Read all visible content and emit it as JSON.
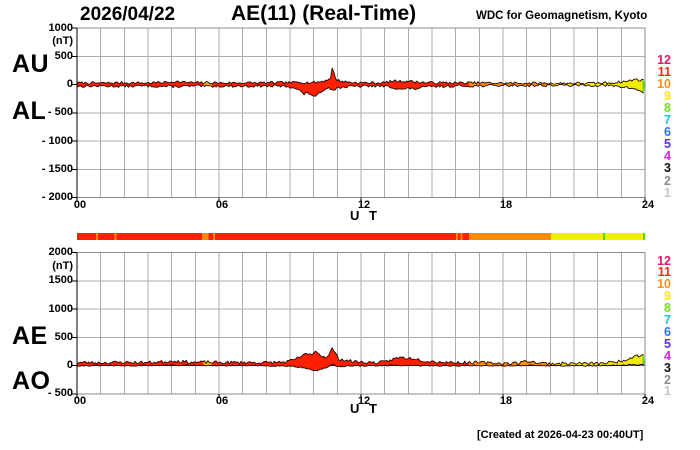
{
  "header": {
    "date": "2026/04/22",
    "title": "AE(11) (Real-Time)",
    "source": "WDC for Geomagnetism, Kyoto"
  },
  "footer": {
    "created_note": "[Created at 2026-04-23 00:40UT]"
  },
  "xaxis": {
    "label": "U T",
    "ticks": [
      {
        "label": "00",
        "hour": 0
      },
      {
        "label": "06",
        "hour": 6
      },
      {
        "label": "12",
        "hour": 12
      },
      {
        "label": "18",
        "hour": 18
      },
      {
        "label": "24",
        "hour": 24
      }
    ]
  },
  "panels": [
    {
      "name": "AU-AL",
      "side_labels": [
        "AU",
        "AL"
      ],
      "unit": "(nT)",
      "yticks": [
        {
          "label": "1000",
          "value": 1000
        },
        {
          "label": "(nT)",
          "value": null
        },
        {
          "label": "500",
          "value": 500
        },
        {
          "label": "0",
          "value": 0
        },
        {
          "label": "- 500",
          "value": -500
        },
        {
          "label": "- 1000",
          "value": -1000
        },
        {
          "label": "- 1500",
          "value": -1500
        },
        {
          "label": "- 2000",
          "value": -2000
        }
      ]
    },
    {
      "name": "AE-AO",
      "side_labels": [
        "AE",
        "AO"
      ],
      "unit": "(nT)",
      "yticks": [
        {
          "label": "2000",
          "value": 2000
        },
        {
          "label": "(nT)",
          "value": null
        },
        {
          "label": "1500",
          "value": 1500
        },
        {
          "label": "1000",
          "value": 1000
        },
        {
          "label": "500",
          "value": 500
        },
        {
          "label": "0",
          "value": 0
        },
        {
          "label": "- 500",
          "value": -500
        }
      ]
    }
  ],
  "legend": {
    "levels": [
      {
        "label": "12",
        "color": "#E8186C"
      },
      {
        "label": "11",
        "color": "#FF2814"
      },
      {
        "label": "10",
        "color": "#FF8C1A"
      },
      {
        "label": "9",
        "color": "#FFE414"
      },
      {
        "label": "8",
        "color": "#78E018"
      },
      {
        "label": "7",
        "color": "#18C8D8"
      },
      {
        "label": "6",
        "color": "#2874F0"
      },
      {
        "label": "5",
        "color": "#5430E0"
      },
      {
        "label": "4",
        "color": "#E020E0"
      },
      {
        "label": "3",
        "color": "#101010"
      },
      {
        "label": "2",
        "color": "#8C8C8C"
      },
      {
        "label": "1",
        "color": "#C6C6C6"
      }
    ]
  },
  "trace_colors": {
    "red": "#FF2000",
    "orange": "#FF8C00",
    "yellow": "#F0EC00",
    "green": "#5CD800",
    "outline": "#240400"
  },
  "chart_data": [
    {
      "type": "area",
      "title": "AU and AL indices, 2026/04/22 (Real-Time)",
      "xlabel": "U T",
      "ylabel": "nT",
      "x_range": [
        0,
        24
      ],
      "ylim": [
        -2000,
        1000
      ],
      "grid": true,
      "color_segments": [
        [
          0,
          5.35,
          "#FF2000"
        ],
        [
          5.35,
          5.7,
          "#FFB400"
        ],
        [
          5.7,
          16.56,
          "#FF2000"
        ],
        [
          16.56,
          20.03,
          "#FF8C00"
        ],
        [
          20.03,
          23.9,
          "#F0EC00"
        ],
        [
          23.9,
          24,
          "#5CD800"
        ]
      ],
      "series": [
        {
          "name": "AU",
          "points": [
            [
              0,
              28
            ],
            [
              1,
              25
            ],
            [
              2,
              30
            ],
            [
              3,
              28
            ],
            [
              3.9,
              40
            ],
            [
              4.1,
              55
            ],
            [
              4.4,
              42
            ],
            [
              5,
              30
            ],
            [
              5.5,
              34
            ],
            [
              6,
              28
            ],
            [
              7,
              30
            ],
            [
              8,
              28
            ],
            [
              8.5,
              34
            ],
            [
              9,
              30
            ],
            [
              9.4,
              44
            ],
            [
              9.7,
              34
            ],
            [
              10,
              36
            ],
            [
              10.3,
              50
            ],
            [
              10.55,
              75
            ],
            [
              10.72,
              120
            ],
            [
              10.8,
              330
            ],
            [
              10.88,
              140
            ],
            [
              11,
              75
            ],
            [
              11.3,
              48
            ],
            [
              11.6,
              36
            ],
            [
              12,
              30
            ],
            [
              12.6,
              28
            ],
            [
              13,
              32
            ],
            [
              13.4,
              65
            ],
            [
              13.7,
              55
            ],
            [
              14,
              62
            ],
            [
              14.3,
              45
            ],
            [
              14.7,
              34
            ],
            [
              15.2,
              32
            ],
            [
              16,
              28
            ],
            [
              17,
              30
            ],
            [
              18,
              22
            ],
            [
              19,
              24
            ],
            [
              20,
              20
            ],
            [
              21,
              22
            ],
            [
              22,
              22
            ],
            [
              22.6,
              32
            ],
            [
              23,
              45
            ],
            [
              23.35,
              65
            ],
            [
              23.65,
              95
            ],
            [
              23.85,
              70
            ],
            [
              24,
              85
            ]
          ]
        },
        {
          "name": "AL",
          "points": [
            [
              0,
              -30
            ],
            [
              1,
              -26
            ],
            [
              2,
              -30
            ],
            [
              3,
              -26
            ],
            [
              4,
              -36
            ],
            [
              5,
              -28
            ],
            [
              5.5,
              -32
            ],
            [
              6,
              -26
            ],
            [
              7,
              -28
            ],
            [
              8,
              -26
            ],
            [
              8.8,
              -32
            ],
            [
              9.2,
              -55
            ],
            [
              9.45,
              -120
            ],
            [
              9.6,
              -175
            ],
            [
              9.75,
              -150
            ],
            [
              9.95,
              -185
            ],
            [
              10.1,
              -225
            ],
            [
              10.25,
              -150
            ],
            [
              10.45,
              -80
            ],
            [
              10.65,
              -60
            ],
            [
              10.85,
              -85
            ],
            [
              11.05,
              -55
            ],
            [
              11.4,
              -40
            ],
            [
              12,
              -30
            ],
            [
              12.6,
              -26
            ],
            [
              13,
              -30
            ],
            [
              13.4,
              -55
            ],
            [
              13.75,
              -90
            ],
            [
              14,
              -68
            ],
            [
              14.25,
              -82
            ],
            [
              14.6,
              -50
            ],
            [
              15,
              -36
            ],
            [
              16,
              -26
            ],
            [
              17,
              -24
            ],
            [
              18,
              -16
            ],
            [
              19,
              -18
            ],
            [
              20,
              -14
            ],
            [
              21,
              -16
            ],
            [
              22,
              -14
            ],
            [
              22.6,
              -24
            ],
            [
              23,
              -40
            ],
            [
              23.5,
              -70
            ],
            [
              23.8,
              -115
            ],
            [
              24,
              -150
            ]
          ]
        }
      ]
    },
    {
      "type": "area",
      "title": "AE and AO indices, 2026/04/22 (Real-Time)",
      "xlabel": "U T",
      "ylabel": "nT",
      "x_range": [
        0,
        24
      ],
      "ylim": [
        -500,
        2000
      ],
      "grid": true,
      "color_segments": [
        [
          0,
          5.35,
          "#FF2000"
        ],
        [
          5.35,
          5.7,
          "#FFB400"
        ],
        [
          5.7,
          16.56,
          "#FF2000"
        ],
        [
          16.56,
          20.03,
          "#FF8C00"
        ],
        [
          20.03,
          23.9,
          "#F0EC00"
        ],
        [
          23.9,
          24,
          "#5CD800"
        ]
      ],
      "series": [
        {
          "name": "AE",
          "points": [
            [
              0,
              55
            ],
            [
              1,
              50
            ],
            [
              2,
              57
            ],
            [
              3,
              53
            ],
            [
              3.9,
              72
            ],
            [
              4.1,
              88
            ],
            [
              4.4,
              70
            ],
            [
              5,
              55
            ],
            [
              5.5,
              62
            ],
            [
              6,
              52
            ],
            [
              7,
              55
            ],
            [
              8,
              52
            ],
            [
              8.8,
              62
            ],
            [
              9.2,
              100
            ],
            [
              9.45,
              160
            ],
            [
              9.6,
              205
            ],
            [
              9.75,
              180
            ],
            [
              9.95,
              215
            ],
            [
              10.1,
              260
            ],
            [
              10.25,
              195
            ],
            [
              10.45,
              150
            ],
            [
              10.65,
              175
            ],
            [
              10.8,
              330
            ],
            [
              10.88,
              230
            ],
            [
              11.05,
              125
            ],
            [
              11.4,
              85
            ],
            [
              12,
              58
            ],
            [
              12.6,
              52
            ],
            [
              13,
              60
            ],
            [
              13.4,
              120
            ],
            [
              13.7,
              145
            ],
            [
              14,
              128
            ],
            [
              14.3,
              125
            ],
            [
              14.7,
              82
            ],
            [
              15.2,
              66
            ],
            [
              16,
              52
            ],
            [
              17,
              52
            ],
            [
              18,
              36
            ],
            [
              18.7,
              46
            ],
            [
              19.05,
              85
            ],
            [
              19.4,
              52
            ],
            [
              20,
              34
            ],
            [
              21,
              36
            ],
            [
              22,
              36
            ],
            [
              22.6,
              55
            ],
            [
              23,
              82
            ],
            [
              23.35,
              130
            ],
            [
              23.65,
              185
            ],
            [
              23.85,
              165
            ],
            [
              24,
              230
            ]
          ]
        },
        {
          "name": "AO",
          "points": [
            [
              0,
              -4
            ],
            [
              1,
              0
            ],
            [
              2,
              -4
            ],
            [
              3,
              0
            ],
            [
              4,
              6
            ],
            [
              5,
              0
            ],
            [
              6,
              -3
            ],
            [
              7,
              0
            ],
            [
              8,
              -4
            ],
            [
              9,
              -8
            ],
            [
              9.45,
              -30
            ],
            [
              9.8,
              -60
            ],
            [
              10.05,
              -95
            ],
            [
              10.3,
              -70
            ],
            [
              10.55,
              -35
            ],
            [
              10.8,
              25
            ],
            [
              11,
              -15
            ],
            [
              11.5,
              -8
            ],
            [
              12,
              -4
            ],
            [
              13,
              -3
            ],
            [
              13.5,
              8
            ],
            [
              14,
              -6
            ],
            [
              15,
              -2
            ],
            [
              16,
              -4
            ],
            [
              17,
              -2
            ],
            [
              18,
              -4
            ],
            [
              19,
              4
            ],
            [
              20,
              -4
            ],
            [
              21,
              -2
            ],
            [
              22,
              -4
            ],
            [
              23,
              4
            ],
            [
              23.5,
              12
            ],
            [
              24,
              18
            ]
          ]
        }
      ]
    },
    {
      "type": "heatmap",
      "title": "hourly activity level bar",
      "x_range": [
        0,
        24
      ],
      "segments": [
        [
          0,
          0.8,
          "#FF2000"
        ],
        [
          0.8,
          0.88,
          "#FF8C00"
        ],
        [
          0.88,
          1.58,
          "#FF2000"
        ],
        [
          1.58,
          1.66,
          "#FF8C00"
        ],
        [
          1.66,
          5.28,
          "#FF2000"
        ],
        [
          5.28,
          5.55,
          "#FF8C00"
        ],
        [
          5.55,
          5.74,
          "#FF2000"
        ],
        [
          5.74,
          5.84,
          "#FF8C00"
        ],
        [
          5.84,
          16.02,
          "#FF2000"
        ],
        [
          16.02,
          16.1,
          "#FF8C00"
        ],
        [
          16.1,
          16.2,
          "#FF2000"
        ],
        [
          16.2,
          16.28,
          "#FF8C00"
        ],
        [
          16.28,
          16.56,
          "#FF2000"
        ],
        [
          16.56,
          20.03,
          "#FF8C00"
        ],
        [
          20.03,
          22.22,
          "#F0F000"
        ],
        [
          22.22,
          22.3,
          "#5CD800"
        ],
        [
          22.3,
          23.92,
          "#F0F000"
        ],
        [
          23.92,
          24,
          "#5CD800"
        ]
      ]
    }
  ]
}
